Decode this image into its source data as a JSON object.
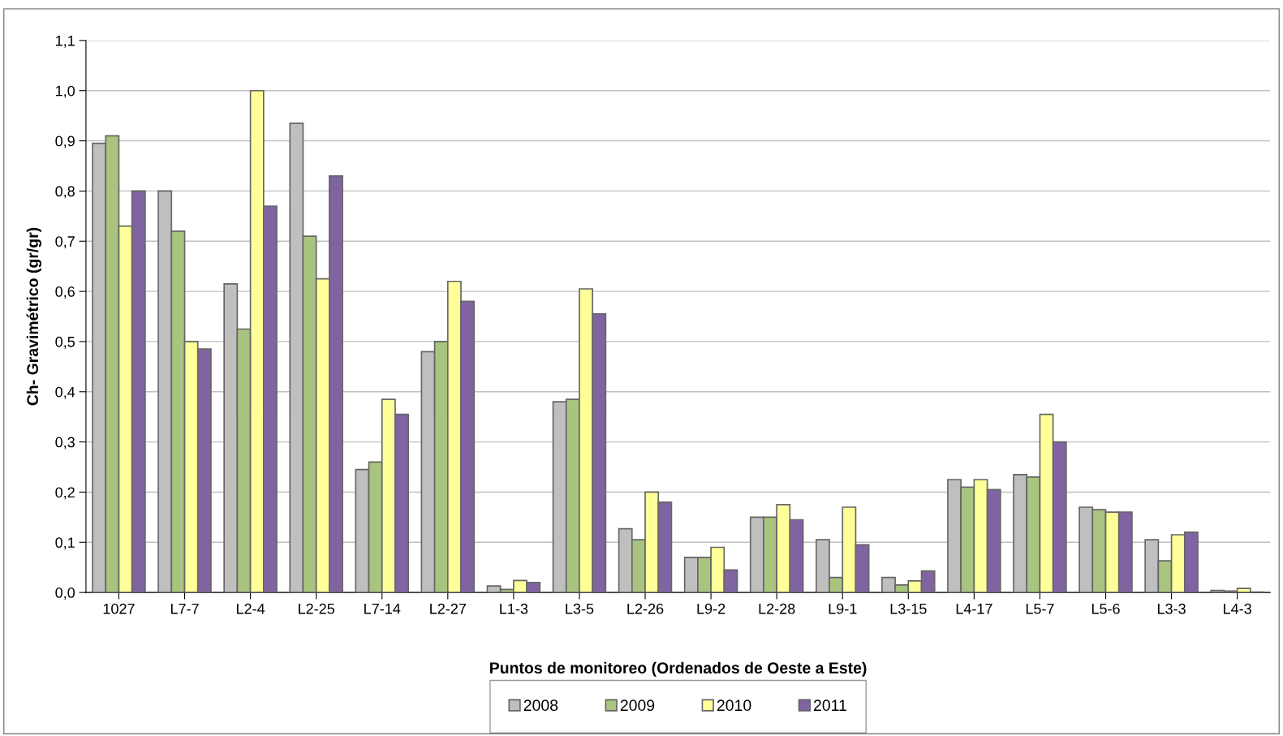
{
  "chart_data": {
    "type": "bar",
    "xlabel": "Puntos de monitoreo (Ordenados de Oeste a Este)",
    "ylabel": "Ch- Gravimétrico (gr/gr)",
    "categories": [
      "1027",
      "L7-7",
      "L2-4",
      "L2-25",
      "L7-14",
      "L2-27",
      "L1-3",
      "L3-5",
      "L2-26",
      "L9-2",
      "L2-28",
      "L9-1",
      "L3-15",
      "L4-17",
      "L5-7",
      "L5-6",
      "L3-3",
      "L4-3"
    ],
    "series": [
      {
        "name": "2008",
        "color": "#bfbfbf",
        "values": [
          0.895,
          0.8,
          0.615,
          0.935,
          0.245,
          0.48,
          0.013,
          0.38,
          0.127,
          0.07,
          0.15,
          0.105,
          0.03,
          0.225,
          0.235,
          0.17,
          0.105,
          0.004
        ]
      },
      {
        "name": "2009",
        "color": "#a9c47f",
        "values": [
          0.91,
          0.72,
          0.525,
          0.71,
          0.26,
          0.5,
          0.006,
          0.385,
          0.105,
          0.07,
          0.15,
          0.03,
          0.015,
          0.21,
          0.23,
          0.165,
          0.063,
          0.003
        ]
      },
      {
        "name": "2010",
        "color": "#ffff99",
        "values": [
          0.73,
          0.5,
          1.0,
          0.625,
          0.385,
          0.62,
          0.024,
          0.605,
          0.2,
          0.09,
          0.175,
          0.17,
          0.023,
          0.225,
          0.355,
          0.16,
          0.115,
          0.008
        ]
      },
      {
        "name": "2011",
        "color": "#8064a2",
        "values": [
          0.8,
          0.485,
          0.77,
          0.83,
          0.355,
          0.58,
          0.02,
          0.555,
          0.18,
          0.045,
          0.145,
          0.095,
          0.043,
          0.205,
          0.3,
          0.16,
          0.12,
          0.001
        ]
      }
    ],
    "ylim": [
      0,
      1.1
    ],
    "yticks": [
      {
        "value": 0,
        "label": "0,0"
      },
      {
        "value": 0.1,
        "label": "0,1"
      },
      {
        "value": 0.2,
        "label": "0,2"
      },
      {
        "value": 0.3,
        "label": "0,3"
      },
      {
        "value": 0.4,
        "label": "0,4"
      },
      {
        "value": 0.5,
        "label": "0,5"
      },
      {
        "value": 0.6,
        "label": "0,6"
      },
      {
        "value": 0.7,
        "label": "0,7"
      },
      {
        "value": 0.8,
        "label": "0,8"
      },
      {
        "value": 0.9,
        "label": "0,9"
      },
      {
        "value": 1.0,
        "label": "1,0"
      },
      {
        "value": 1.1,
        "label": "1,1"
      }
    ],
    "grid": "y",
    "legend": "bottom"
  }
}
